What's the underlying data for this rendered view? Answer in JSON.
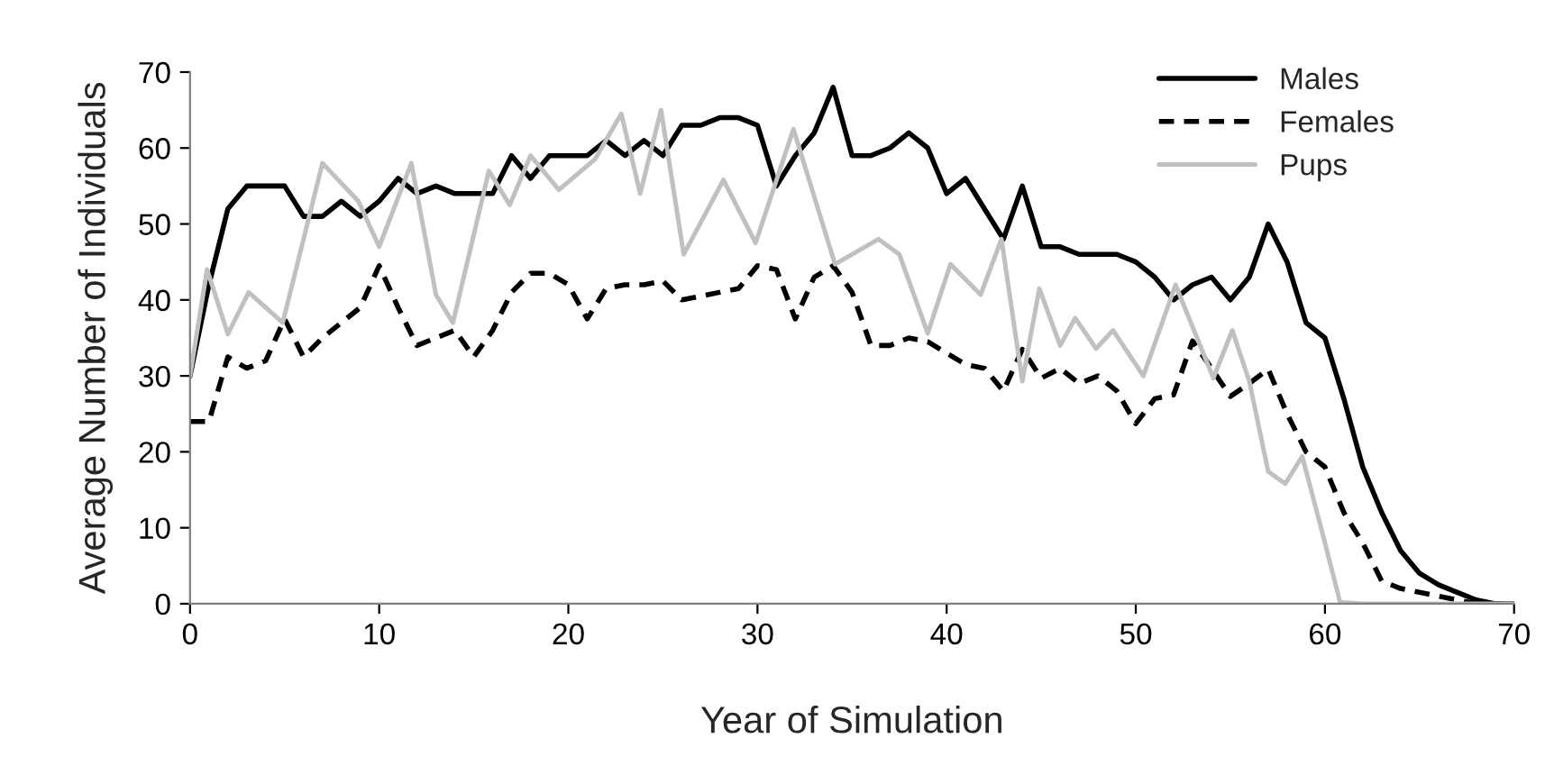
{
  "chart_data": {
    "type": "line",
    "xlabel": "Year of Simulation",
    "ylabel": "Average Number of Individuals",
    "xlim": [
      0,
      70
    ],
    "ylim": [
      0,
      70
    ],
    "xticks": [
      0,
      10,
      20,
      30,
      40,
      50,
      60,
      70
    ],
    "yticks": [
      0,
      10,
      20,
      30,
      40,
      50,
      60,
      70
    ],
    "grid": false,
    "legend": "top right",
    "marker": "none",
    "series": [
      {
        "name": "Males",
        "color": "#000000",
        "line_style": "solid",
        "x": [
          0,
          1,
          2,
          3,
          4,
          5,
          6,
          7,
          8,
          9,
          10,
          11,
          12,
          13,
          14,
          15,
          16,
          17,
          18,
          19,
          20,
          21,
          22,
          23,
          24,
          25,
          26,
          27,
          28,
          29,
          30,
          31,
          32,
          33,
          34,
          35,
          36,
          37,
          38,
          39,
          40,
          41,
          42,
          43,
          44,
          45,
          46,
          47,
          48,
          49,
          50,
          51,
          52,
          53,
          54,
          55,
          56,
          57,
          58,
          59,
          60,
          61,
          62,
          63,
          64,
          65,
          66,
          67,
          68,
          69,
          70
        ],
        "values": [
          30,
          42,
          52,
          55,
          55,
          55,
          51,
          51,
          53,
          51,
          53,
          56,
          54,
          55,
          54,
          54,
          54,
          59,
          56,
          59,
          59,
          59,
          61,
          59,
          61,
          59,
          63,
          63,
          64,
          64,
          63,
          55,
          59,
          62,
          68,
          59,
          59,
          60,
          62,
          60,
          54,
          56,
          52,
          48,
          55,
          47,
          47,
          46,
          46,
          46,
          45,
          43,
          40,
          42,
          43,
          40,
          43,
          50,
          45,
          37,
          35,
          27,
          18,
          12,
          7,
          4,
          2.5,
          1.5,
          0.5,
          0,
          0
        ]
      },
      {
        "name": "Females",
        "color": "#000000",
        "line_style": "dashed",
        "x": [
          0,
          1,
          2,
          3,
          4,
          5,
          6,
          7,
          8,
          9,
          10,
          11,
          12,
          13,
          14,
          15,
          16,
          17,
          18,
          19,
          20,
          21,
          22,
          23,
          24,
          25,
          26,
          27,
          28,
          29,
          30,
          31,
          32,
          33,
          34,
          35,
          36,
          37,
          38,
          39,
          40,
          41,
          42,
          43,
          44,
          45,
          46,
          47,
          48,
          49,
          50,
          51,
          52,
          53,
          54,
          55,
          56,
          57,
          58,
          59,
          60,
          61,
          62,
          63,
          64,
          65,
          66,
          67,
          68,
          69,
          70
        ],
        "values": [
          24,
          24,
          32.5,
          31,
          32,
          37.5,
          32.5,
          35,
          37,
          39,
          44.5,
          39,
          34,
          35,
          36,
          32.5,
          36,
          41,
          43.5,
          43.5,
          42,
          37.5,
          41.5,
          42,
          42,
          42.5,
          40,
          40.5,
          41,
          41.5,
          44.5,
          44,
          37.5,
          43,
          44.5,
          41,
          34,
          34,
          35,
          34.5,
          33,
          31.5,
          31,
          28,
          33.5,
          29.7,
          31,
          29,
          30,
          28,
          23.7,
          27,
          27.5,
          34.6,
          31,
          27.3,
          29,
          30.9,
          25,
          20,
          18,
          12,
          8,
          3,
          2,
          1.5,
          1,
          0.5,
          0,
          0,
          0
        ]
      },
      {
        "name": "Pups",
        "color": "#c0c0c0",
        "line_style": "solid",
        "x": [
          0,
          0.9,
          2,
          3.1,
          4.9,
          7,
          8.9,
          10,
          11.7,
          13,
          13.9,
          15.8,
          16.9,
          18,
          19.5,
          21.4,
          22.8,
          23.8,
          24.9,
          26.1,
          28.2,
          29.9,
          31.9,
          34.1,
          36.4,
          37.5,
          39,
          40.2,
          41.8,
          42.9,
          44,
          44.9,
          46,
          46.8,
          47.9,
          48.8,
          50.4,
          52.1,
          54.1,
          55.1,
          56,
          57,
          57.9,
          58.8,
          59.9,
          60.8,
          62,
          65,
          70
        ],
        "values": [
          30,
          44,
          35.5,
          41,
          37,
          58,
          53,
          47,
          58,
          40.7,
          37,
          57,
          52.5,
          59,
          54.5,
          58.5,
          64.5,
          54,
          65,
          46,
          55.8,
          47.5,
          62.5,
          44.7,
          48,
          46,
          35.6,
          44.7,
          40.7,
          48,
          29.3,
          41.5,
          34,
          37.6,
          33.6,
          36,
          30,
          42,
          29.7,
          36,
          29.3,
          17.4,
          15.8,
          19.4,
          9,
          0.2,
          0,
          0,
          0
        ]
      }
    ]
  }
}
